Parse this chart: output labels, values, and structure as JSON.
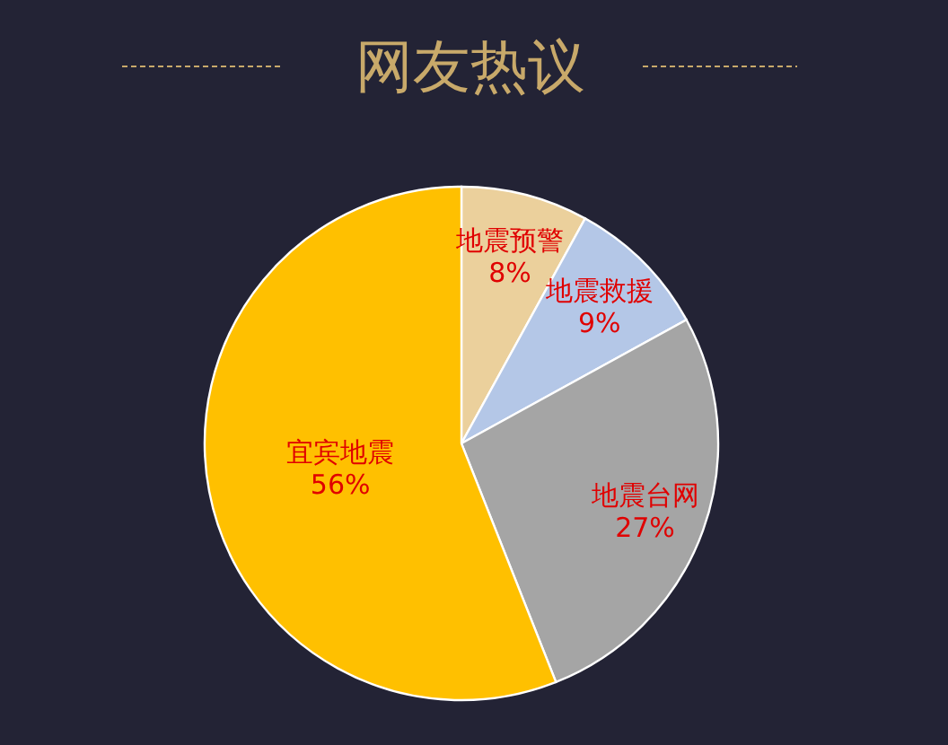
{
  "chart_data": {
    "type": "pie",
    "title": "网友热议",
    "categories": [
      "地震预警",
      "地震救援",
      "地震台网",
      "宜宾地震"
    ],
    "values": [
      8,
      9,
      27,
      56
    ],
    "colors": [
      "#ebd09c",
      "#b4c7e7",
      "#a5a5a5",
      "#ffc000"
    ],
    "value_labels": [
      "8%",
      "9%",
      "27%",
      "56%"
    ]
  }
}
